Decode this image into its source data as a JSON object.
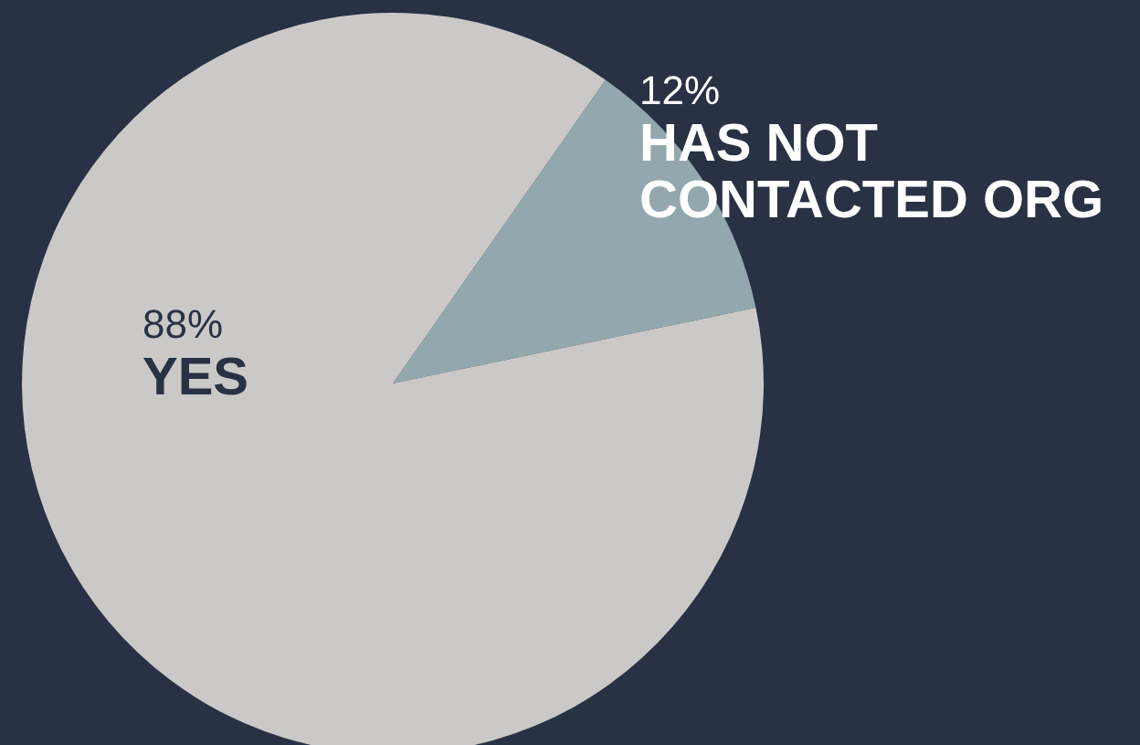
{
  "chart_data": {
    "type": "pie",
    "categories": [
      "HAS NOT CONTACTED ORG",
      "YES"
    ],
    "values": [
      12,
      88
    ],
    "colors": [
      "#93a8ae",
      "#cbc9c8"
    ],
    "value_labels": [
      "12%",
      "88%"
    ]
  }
}
